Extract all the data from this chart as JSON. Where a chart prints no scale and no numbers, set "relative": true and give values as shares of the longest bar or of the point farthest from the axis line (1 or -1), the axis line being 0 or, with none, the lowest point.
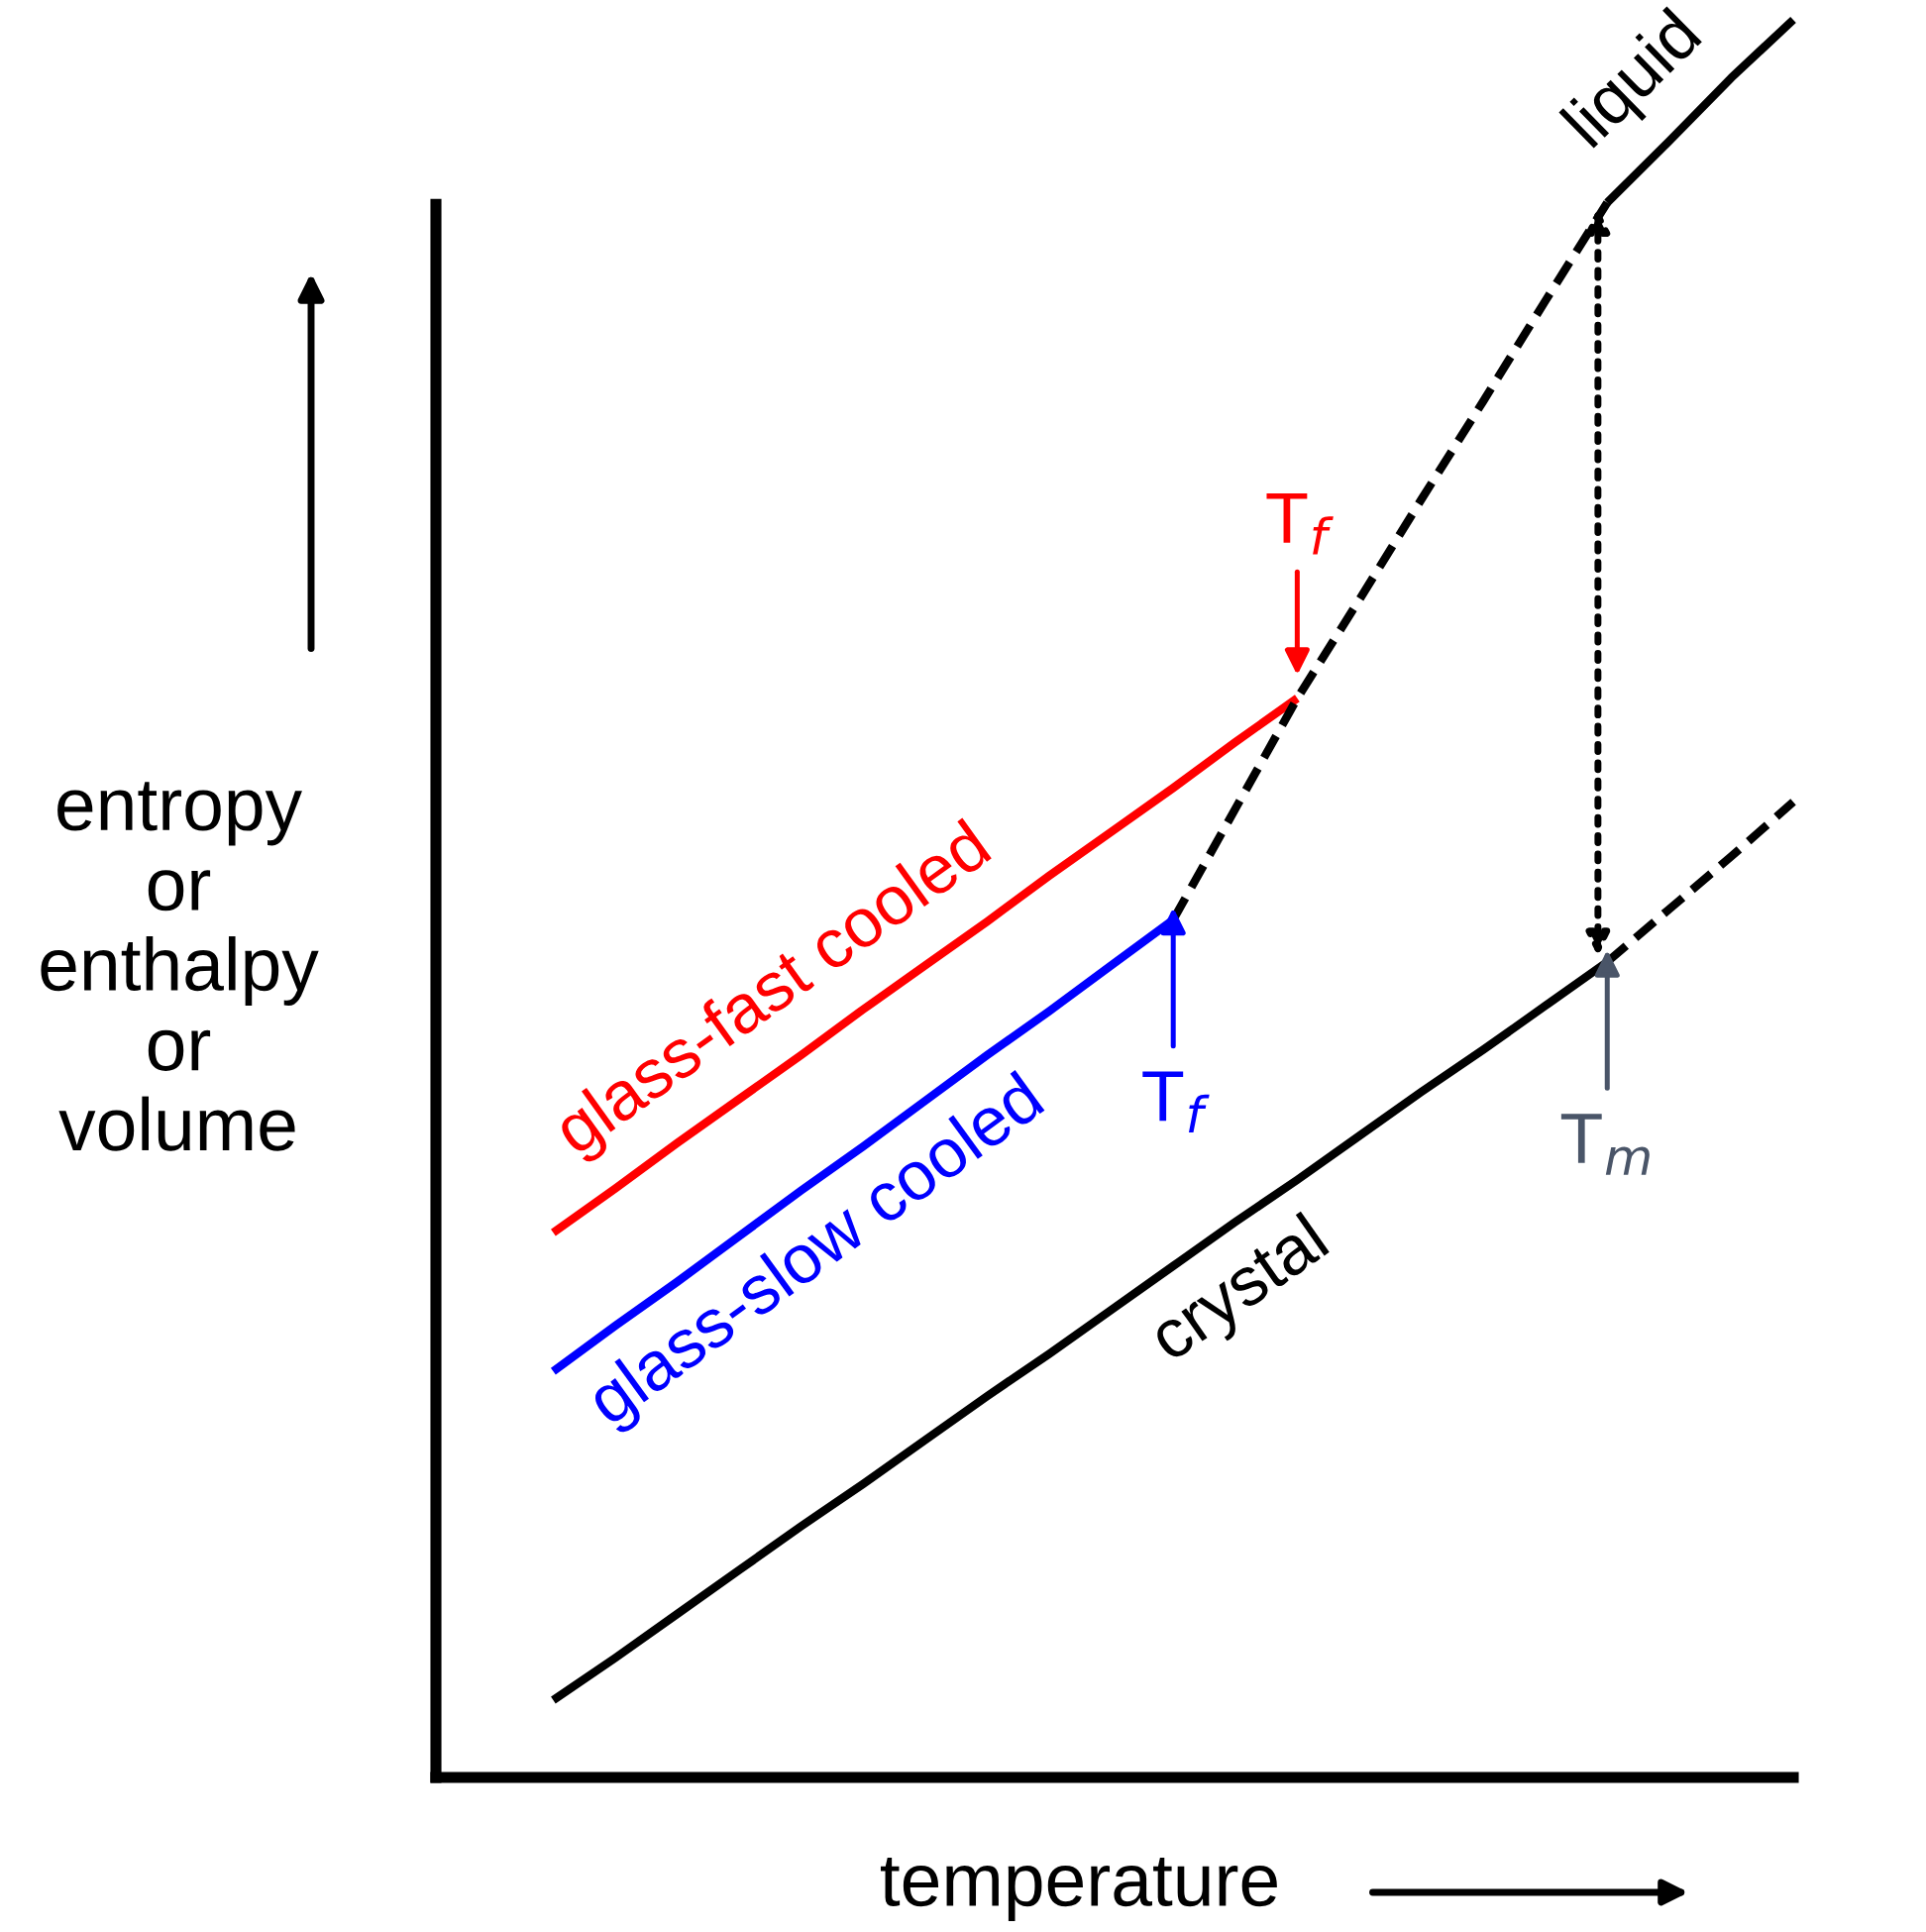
{
  "chart_data": {
    "type": "line",
    "relative": true,
    "xlabel": "temperature",
    "ylabel": "entropy\nor\nenthalpy\nor\nvolume",
    "marker": "none",
    "categories": [
      null,
      null,
      null,
      null,
      null,
      null,
      null,
      null,
      null,
      null,
      null,
      null,
      null,
      null,
      null,
      null,
      null,
      null,
      null,
      null,
      null
    ],
    "series": [
      {
        "name": "liquid",
        "color": "#000000",
        "values": [
          null,
          null,
          null,
          null,
          null,
          null,
          null,
          null,
          null,
          null,
          null,
          null,
          null,
          null,
          null,
          null,
          null,
          0.896,
          0.931,
          0.967,
          1.0
        ]
      },
      {
        "name": "glass-fast cooled",
        "color": "#ff0000",
        "values": [
          0.31,
          0.335,
          0.361,
          0.386,
          0.411,
          0.437,
          0.462,
          0.487,
          0.513,
          0.538,
          0.563,
          0.589,
          0.614,
          null,
          null,
          null,
          null,
          null,
          null,
          null,
          null
        ]
      },
      {
        "name": "glass-slow cooled",
        "color": "#0000ff",
        "values": [
          0.231,
          0.257,
          0.282,
          0.308,
          0.334,
          0.359,
          0.385,
          0.411,
          0.436,
          0.462,
          0.488,
          null,
          null,
          null,
          null,
          null,
          null,
          null,
          null,
          null,
          null
        ]
      },
      {
        "name": "crystal",
        "color": "#000000",
        "values": [
          0.044,
          0.068,
          0.093,
          0.118,
          0.143,
          0.167,
          0.192,
          0.217,
          0.241,
          0.266,
          0.291,
          0.316,
          0.34,
          0.365,
          0.39,
          0.414,
          0.439,
          0.464,
          null,
          null,
          null
        ]
      },
      {
        "color": "#000000",
        "line_style": "dashed",
        "values": [
          null,
          null,
          null,
          null,
          null,
          null,
          null,
          null,
          null,
          null,
          0.488,
          0.551,
          0.614,
          0.67,
          0.727,
          0.783,
          0.84,
          0.896,
          null,
          null,
          null
        ]
      },
      {
        "color": "#000000",
        "line_style": "dashed",
        "values": [
          null,
          null,
          null,
          null,
          null,
          null,
          null,
          null,
          null,
          null,
          null,
          null,
          null,
          null,
          null,
          null,
          null,
          0.464,
          0.494,
          0.524,
          0.555
        ]
      }
    ],
    "annotations": [
      "T$_{f}$",
      "T$_{f}$",
      "T$_{m}$"
    ]
  }
}
